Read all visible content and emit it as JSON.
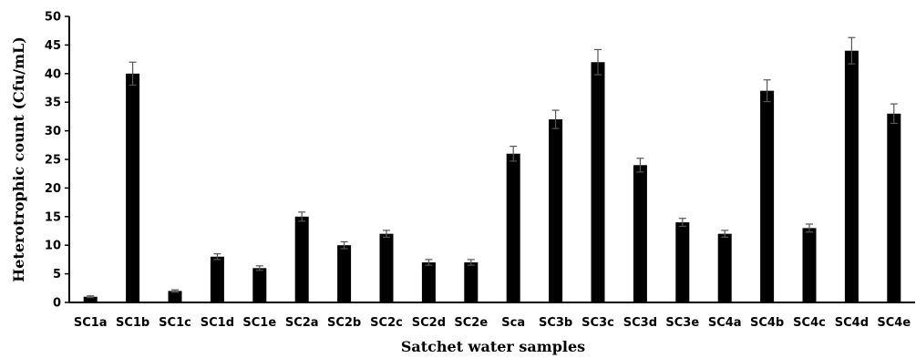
{
  "chart_data": {
    "type": "bar",
    "title": "",
    "xlabel": "Satchet water samples",
    "ylabel": "Heterotrophic count (Cfu/mL)",
    "ylim": [
      0,
      50
    ],
    "yticks": [
      0,
      5,
      10,
      15,
      20,
      25,
      30,
      35,
      40,
      45,
      50
    ],
    "grid": false,
    "legend": "none",
    "bar_color": "#000000",
    "categories": [
      "SC1a",
      "SC1b",
      "SC1c",
      "SC1d",
      "SC1e",
      "SC2a",
      "SC2b",
      "SC2c",
      "SC2d",
      "SC2e",
      "Sca",
      "SC3b",
      "SC3c",
      "SC3d",
      "SC3e",
      "SC4a",
      "SC4b",
      "SC4c",
      "SC4d",
      "SC4e"
    ],
    "values": [
      1,
      40,
      2,
      8,
      6,
      15,
      10,
      12,
      7,
      7,
      26,
      32,
      42,
      24,
      14,
      12,
      37,
      13,
      44,
      33
    ],
    "errors": [
      0.15,
      2,
      0.2,
      0.5,
      0.4,
      0.8,
      0.6,
      0.6,
      0.5,
      0.5,
      1.3,
      1.6,
      2.2,
      1.2,
      0.7,
      0.6,
      1.9,
      0.7,
      2.3,
      1.7
    ]
  }
}
